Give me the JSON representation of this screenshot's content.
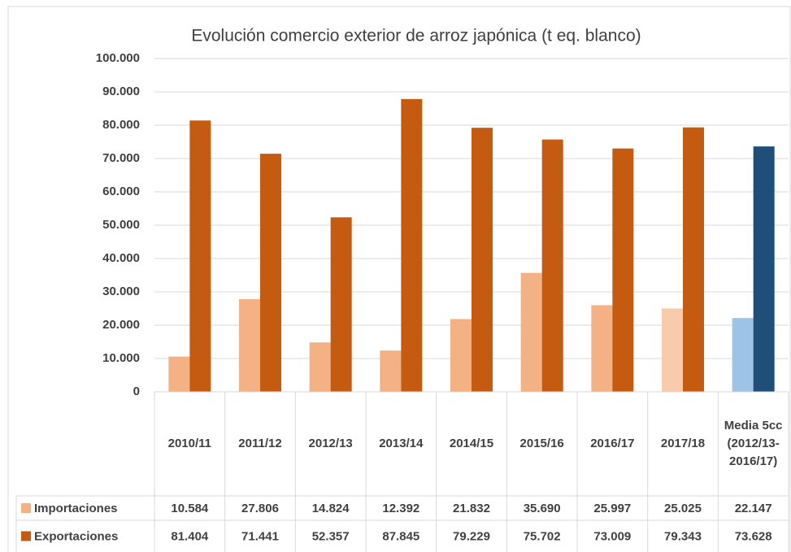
{
  "chart_data": {
    "type": "bar",
    "title": "Evolución comercio exterior de arroz japónica (t eq. blanco)",
    "categories": [
      "2010/11",
      "2011/12",
      "2012/13",
      "2013/14",
      "2014/15",
      "2015/16",
      "2016/17",
      "2017/18",
      "Media 5cc (2012/13-2016/17)"
    ],
    "series": [
      {
        "name": "Importaciones",
        "color": "#f4b183",
        "colors": [
          "#f4b183",
          "#f4b183",
          "#f4b183",
          "#f4b183",
          "#f4b183",
          "#f4b183",
          "#f4b183",
          "#f8cbad",
          "#9dc3e6"
        ],
        "values": [
          10584,
          27806,
          14824,
          12392,
          21832,
          35690,
          25997,
          25025,
          22147
        ],
        "value_labels": [
          "10.584",
          "27.806",
          "14.824",
          "12.392",
          "21.832",
          "35.690",
          "25.997",
          "25.025",
          "22.147"
        ]
      },
      {
        "name": "Exportaciones",
        "color": "#c55a11",
        "colors": [
          "#c55a11",
          "#c55a11",
          "#c55a11",
          "#c55a11",
          "#c55a11",
          "#c55a11",
          "#c55a11",
          "#c55a11",
          "#1f4e79"
        ],
        "values": [
          81404,
          71441,
          52357,
          87845,
          79229,
          75702,
          73009,
          79343,
          73628
        ],
        "value_labels": [
          "81.404",
          "71.441",
          "52.357",
          "87.845",
          "79.229",
          "75.702",
          "73.009",
          "79.343",
          "73.628"
        ]
      }
    ],
    "ylim": [
      0,
      100000
    ],
    "yticks": [
      0,
      {
        "value": 10000,
        "label": "10.000"
      },
      {
        "value": 20000,
        "label": "20.000"
      },
      {
        "value": 30000,
        "label": "30.000"
      },
      {
        "value": 40000,
        "label": "40.000"
      },
      {
        "value": 50000,
        "label": "50.000"
      },
      {
        "value": 60000,
        "label": "60.000"
      },
      {
        "value": 70000,
        "label": "70.000"
      },
      {
        "value": 80000,
        "label": "80.000"
      },
      {
        "value": 90000,
        "label": "90.000"
      },
      {
        "value": 100000,
        "label": "100.000"
      }
    ],
    "grid": true
  }
}
